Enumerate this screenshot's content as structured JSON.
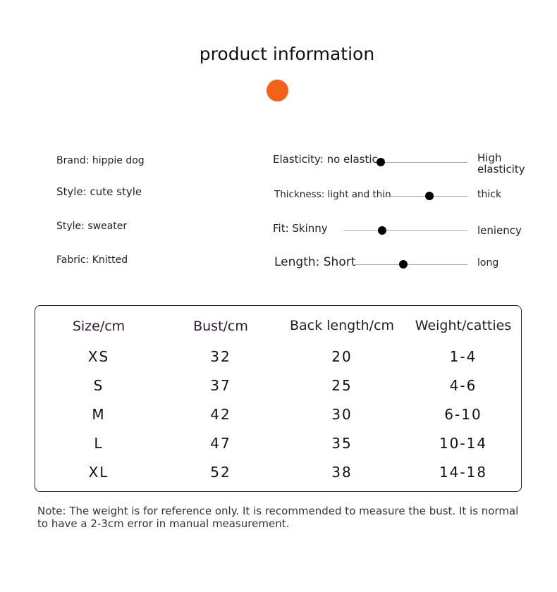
{
  "title": "product information",
  "accent_color": "#f4621a",
  "attributes": [
    {
      "label": "Brand: hippie dog"
    },
    {
      "label": "Style: cute style"
    },
    {
      "label": "Style: sweater"
    },
    {
      "label": "Fabric: Knitted"
    }
  ],
  "scales": [
    {
      "left": "Elasticity: no elastic",
      "right": "High elasticity",
      "level": 0.0
    },
    {
      "left": "Thickness: light and thin",
      "right": "thick",
      "level": 0.54
    },
    {
      "left": "Fit: Skinny",
      "right": "leniency",
      "level": 0.31
    },
    {
      "left": "Length: Short",
      "right": "long",
      "level": 0.44
    }
  ],
  "size_table": {
    "headers": [
      "Size/cm",
      "Bust/cm",
      "Back length/cm",
      "Weight/catties"
    ],
    "rows": [
      [
        "XS",
        "32",
        "20",
        "1-4"
      ],
      [
        "S",
        "37",
        "25",
        "4-6"
      ],
      [
        "M",
        "42",
        "30",
        "6-10"
      ],
      [
        "L",
        "47",
        "35",
        "10-14"
      ],
      [
        "XL",
        "52",
        "38",
        "14-18"
      ]
    ]
  },
  "note": "Note: The weight is for reference only. It is recommended to measure the bust. It is normal to have a 2-3cm error in manual measurement."
}
